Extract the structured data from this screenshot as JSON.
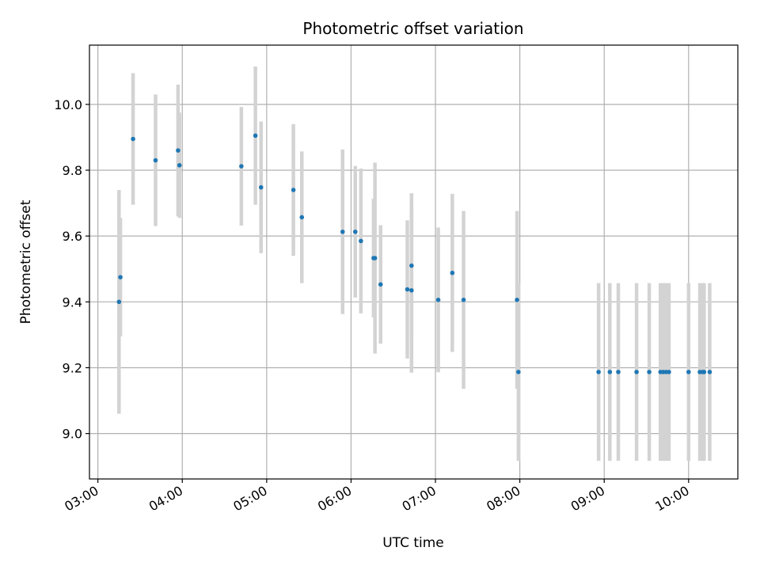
{
  "chart_data": {
    "type": "scatter",
    "title": "Photometric offset variation",
    "xlabel": "UTC time",
    "ylabel": "Photometric offset",
    "xlim": [
      "02:54",
      "10:35"
    ],
    "ylim": [
      8.862,
      10.18
    ],
    "x_ticks": [
      "03:00",
      "04:00",
      "05:00",
      "06:00",
      "07:00",
      "08:00",
      "09:00",
      "10:00"
    ],
    "y_ticks": [
      9.0,
      9.2,
      9.4,
      9.6,
      9.8,
      10.0
    ],
    "y_tick_labels": [
      "9.0",
      "9.2",
      "9.4",
      "9.6",
      "9.8",
      "10.0"
    ],
    "grid": true,
    "x_tick_rotation": 30,
    "colors": {
      "point": "#1f77b4",
      "errorbar": "#d3d3d3",
      "grid": "#b0b0b0"
    },
    "series": [
      {
        "points": [
          {
            "x": "03:15",
            "y": 9.4,
            "err": 0.34
          },
          {
            "x": "03:16",
            "y": 9.475,
            "err": 0.18
          },
          {
            "x": "03:25",
            "y": 9.895,
            "err": 0.2
          },
          {
            "x": "03:41",
            "y": 9.83,
            "err": 0.2
          },
          {
            "x": "03:57",
            "y": 9.86,
            "err": 0.2
          },
          {
            "x": "03:58",
            "y": 9.815,
            "err": 0.16
          },
          {
            "x": "04:42",
            "y": 9.812,
            "err": 0.18
          },
          {
            "x": "04:52",
            "y": 9.905,
            "err": 0.21
          },
          {
            "x": "04:56",
            "y": 9.748,
            "err": 0.2
          },
          {
            "x": "05:19",
            "y": 9.74,
            "err": 0.2
          },
          {
            "x": "05:25",
            "y": 9.657,
            "err": 0.2
          },
          {
            "x": "05:54",
            "y": 9.613,
            "err": 0.25
          },
          {
            "x": "06:03",
            "y": 9.613,
            "err": 0.2
          },
          {
            "x": "06:07",
            "y": 9.585,
            "err": 0.22
          },
          {
            "x": "06:16",
            "y": 9.533,
            "err": 0.18
          },
          {
            "x": "06:17",
            "y": 9.533,
            "err": 0.29
          },
          {
            "x": "06:21",
            "y": 9.453,
            "err": 0.18
          },
          {
            "x": "06:40",
            "y": 9.438,
            "err": 0.21
          },
          {
            "x": "06:43",
            "y": 9.51,
            "err": 0.22
          },
          {
            "x": "06:43",
            "y": 9.435,
            "err": 0.25
          },
          {
            "x": "07:02",
            "y": 9.406,
            "err": 0.22
          },
          {
            "x": "07:12",
            "y": 9.488,
            "err": 0.24
          },
          {
            "x": "07:20",
            "y": 9.406,
            "err": 0.27
          },
          {
            "x": "07:58",
            "y": 9.406,
            "err": 0.27
          },
          {
            "x": "07:59",
            "y": 9.187,
            "err": 0.27
          },
          {
            "x": "08:56",
            "y": 9.187,
            "err": 0.27
          },
          {
            "x": "09:04",
            "y": 9.187,
            "err": 0.27
          },
          {
            "x": "09:10",
            "y": 9.187,
            "err": 0.27
          },
          {
            "x": "09:23",
            "y": 9.187,
            "err": 0.27
          },
          {
            "x": "09:32",
            "y": 9.187,
            "err": 0.27
          },
          {
            "x": "09:40",
            "y": 9.187,
            "err": 0.27
          },
          {
            "x": "09:42",
            "y": 9.187,
            "err": 0.27
          },
          {
            "x": "09:44",
            "y": 9.187,
            "err": 0.27
          },
          {
            "x": "09:46",
            "y": 9.187,
            "err": 0.27
          },
          {
            "x": "10:00",
            "y": 9.187,
            "err": 0.27
          },
          {
            "x": "10:08",
            "y": 9.187,
            "err": 0.27
          },
          {
            "x": "10:10",
            "y": 9.187,
            "err": 0.27
          },
          {
            "x": "10:11",
            "y": 9.187,
            "err": 0.27
          },
          {
            "x": "10:15",
            "y": 9.187,
            "err": 0.27
          }
        ]
      }
    ]
  }
}
